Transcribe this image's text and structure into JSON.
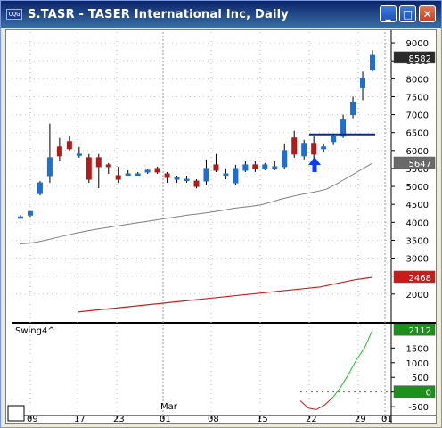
{
  "window": {
    "icon_label": "CQG",
    "title": "S.TASR - TASER International Inc, Daily",
    "buttons": [
      "minimize",
      "maximize",
      "close"
    ]
  },
  "price_panel": {
    "y_ticks": [
      "9000",
      "8500",
      "8000",
      "7500",
      "7000",
      "6500",
      "6000",
      "5500",
      "5000",
      "4500",
      "4000",
      "3500",
      "3000",
      "2500",
      "2000"
    ],
    "last_price_label": "8582",
    "ma_label": "5647",
    "red_line_label": "2468",
    "colors": {
      "bull_candle": "#1f6fd0",
      "bear_candle": "#b01c1c",
      "ma_line": "#808080",
      "red_line": "#c82020",
      "resistance_line": "#0a2a8a",
      "arrow": "#0a3cff"
    },
    "resistance_level": 6450,
    "candles": [
      {
        "o": 4150,
        "h": 4200,
        "l": 4100,
        "c": 4150
      },
      {
        "o": 4200,
        "h": 4300,
        "l": 4150,
        "c": 4300
      },
      {
        "o": 4800,
        "h": 5150,
        "l": 4750,
        "c": 5100
      },
      {
        "o": 5300,
        "h": 6750,
        "l": 5100,
        "c": 5800
      },
      {
        "o": 6100,
        "h": 6350,
        "l": 5700,
        "c": 5850
      },
      {
        "o": 6250,
        "h": 6400,
        "l": 6000,
        "c": 6050
      },
      {
        "o": 5900,
        "h": 6100,
        "l": 5800,
        "c": 5900
      },
      {
        "o": 5800,
        "h": 5900,
        "l": 5100,
        "c": 5200
      },
      {
        "o": 5800,
        "h": 5900,
        "l": 4950,
        "c": 5550
      },
      {
        "o": 5600,
        "h": 5650,
        "l": 5350,
        "c": 5550
      },
      {
        "o": 5300,
        "h": 5550,
        "l": 5100,
        "c": 5200
      },
      {
        "o": 5350,
        "h": 5450,
        "l": 5300,
        "c": 5350
      },
      {
        "o": 5350,
        "h": 5400,
        "l": 5300,
        "c": 5350
      },
      {
        "o": 5400,
        "h": 5500,
        "l": 5350,
        "c": 5450
      },
      {
        "o": 5500,
        "h": 5550,
        "l": 5350,
        "c": 5400
      },
      {
        "o": 5350,
        "h": 5400,
        "l": 5100,
        "c": 5250
      },
      {
        "o": 5200,
        "h": 5300,
        "l": 5100,
        "c": 5250
      },
      {
        "o": 5200,
        "h": 5300,
        "l": 5100,
        "c": 5200
      },
      {
        "o": 5150,
        "h": 5200,
        "l": 4950,
        "c": 5000
      },
      {
        "o": 5150,
        "h": 5750,
        "l": 5050,
        "c": 5500
      },
      {
        "o": 5600,
        "h": 5900,
        "l": 5400,
        "c": 5450
      },
      {
        "o": 5350,
        "h": 5500,
        "l": 5200,
        "c": 5350
      },
      {
        "o": 5100,
        "h": 5600,
        "l": 5050,
        "c": 5500
      },
      {
        "o": 5450,
        "h": 5700,
        "l": 5400,
        "c": 5600
      },
      {
        "o": 5600,
        "h": 5700,
        "l": 5400,
        "c": 5500
      },
      {
        "o": 5500,
        "h": 5650,
        "l": 5450,
        "c": 5600
      },
      {
        "o": 5550,
        "h": 5700,
        "l": 5450,
        "c": 5550
      },
      {
        "o": 5550,
        "h": 6200,
        "l": 5500,
        "c": 6000
      },
      {
        "o": 6350,
        "h": 6550,
        "l": 5800,
        "c": 5900
      },
      {
        "o": 5850,
        "h": 6300,
        "l": 5750,
        "c": 6200
      },
      {
        "o": 6200,
        "h": 6400,
        "l": 5600,
        "c": 5900
      },
      {
        "o": 6050,
        "h": 6200,
        "l": 5950,
        "c": 6100
      },
      {
        "o": 6250,
        "h": 6450,
        "l": 6150,
        "c": 6400
      },
      {
        "o": 6400,
        "h": 7000,
        "l": 6350,
        "c": 6850
      },
      {
        "o": 7000,
        "h": 7500,
        "l": 6900,
        "c": 7350
      },
      {
        "o": 7750,
        "h": 8200,
        "l": 7400,
        "c": 8000
      },
      {
        "o": 8250,
        "h": 8800,
        "l": 8200,
        "c": 8650
      }
    ],
    "ma_points": [
      3400,
      3420,
      3460,
      3520,
      3580,
      3640,
      3700,
      3750,
      3800,
      3840,
      3880,
      3920,
      3960,
      4000,
      4040,
      4080,
      4120,
      4160,
      4200,
      4230,
      4260,
      4300,
      4340,
      4390,
      4420,
      4450,
      4490,
      4560,
      4640,
      4700,
      4760,
      4810,
      4860,
      4920,
      5050,
      5200,
      5350,
      5500,
      5650
    ],
    "red_line_points": [
      1500,
      1550,
      1600,
      1650,
      1700,
      1750,
      1800,
      1850,
      1900,
      1950,
      2000,
      2050,
      2100,
      2150,
      2200,
      2300,
      2400,
      2468
    ]
  },
  "swing_panel": {
    "label": "Swing4^",
    "y_ticks": [
      "1500",
      "1000",
      "500",
      "0",
      "-500"
    ],
    "last_label": "2112",
    "zero_label": "0",
    "points": [
      -300,
      -550,
      -600,
      -450,
      -200,
      150,
      600,
      1100,
      1500,
      2112
    ]
  },
  "x_axis": {
    "ticks": [
      "09",
      "17",
      "23",
      "01",
      "08",
      "15",
      "22",
      "29",
      "01"
    ],
    "month_label": "Mar"
  }
}
